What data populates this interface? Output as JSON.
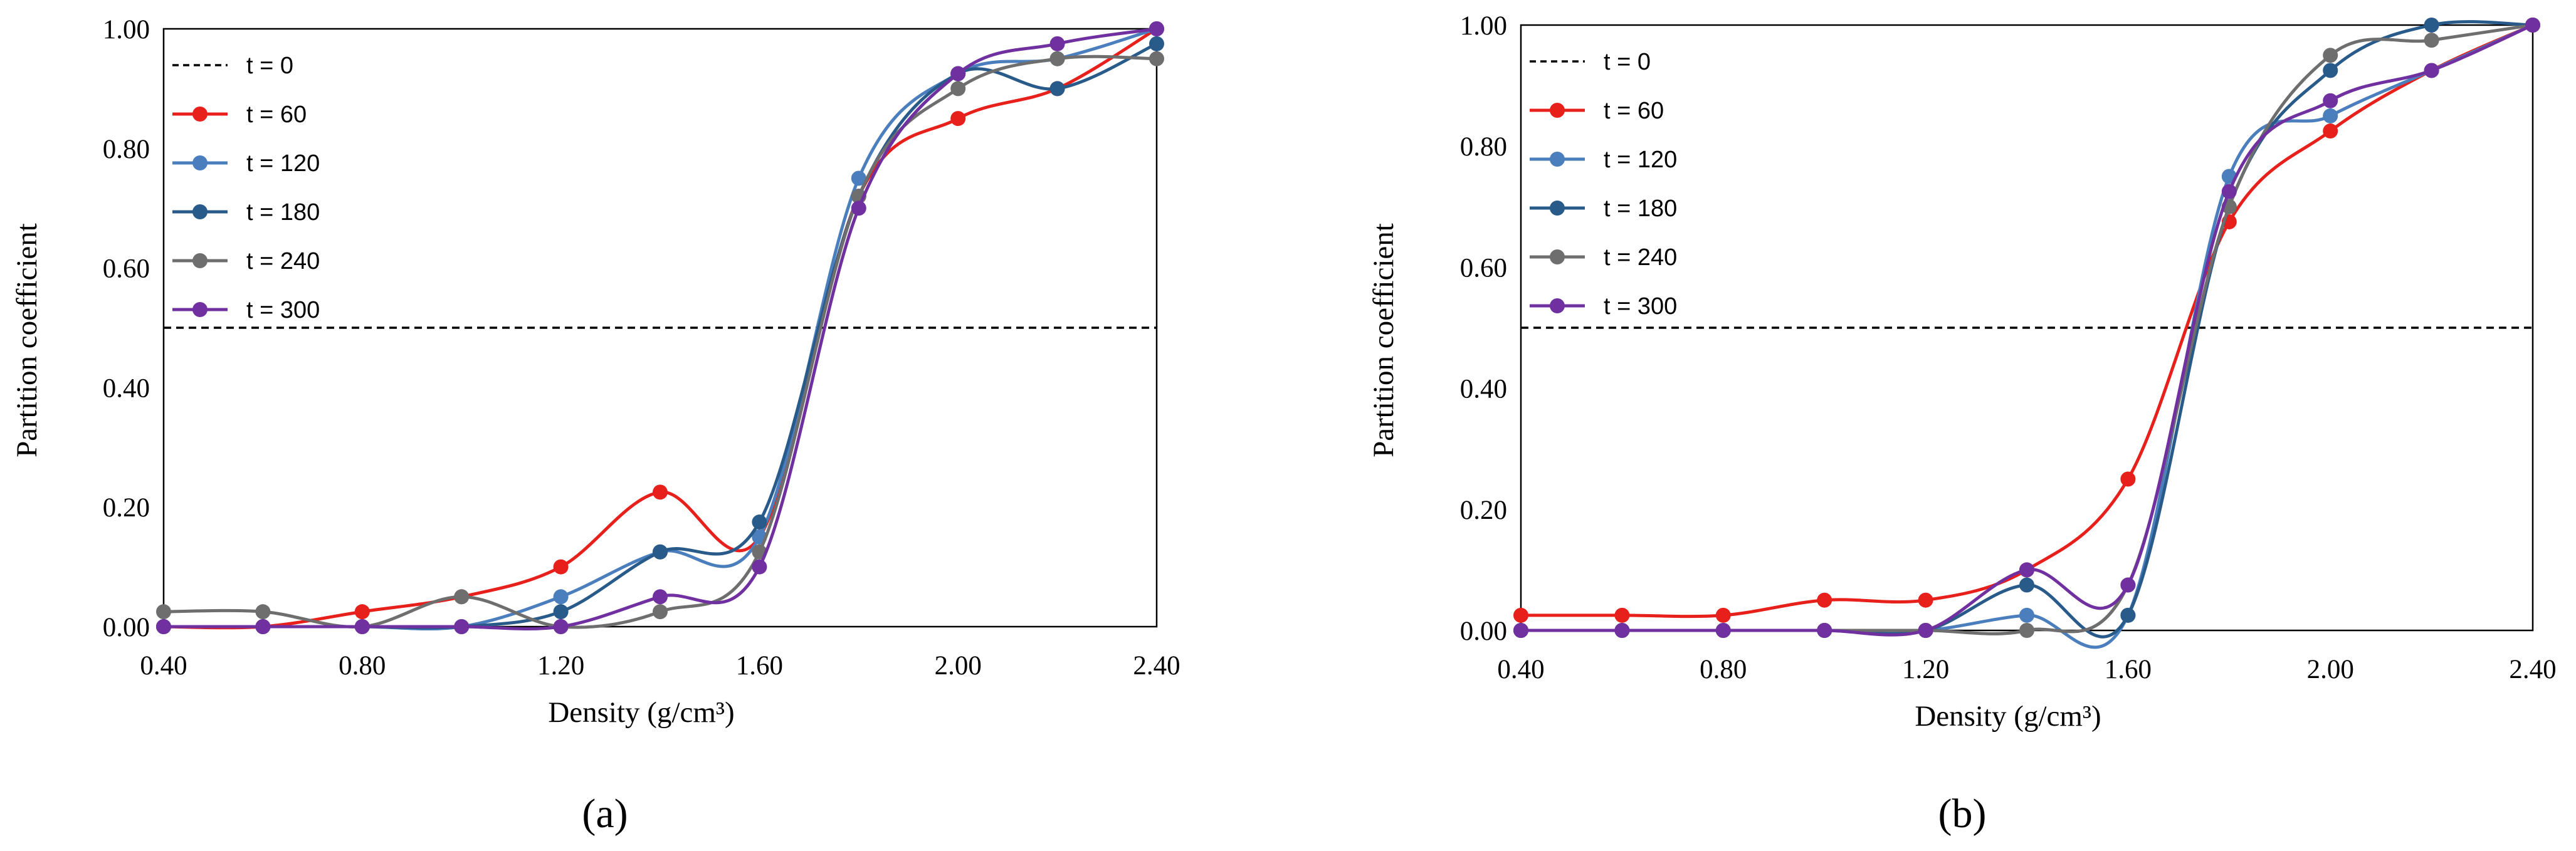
{
  "figure": {
    "panels": [
      "(a)",
      "(b)"
    ]
  },
  "chart_data": [
    {
      "type": "line",
      "panel_label": "(a)",
      "xlabel": "Density (g/cm³)",
      "ylabel": "Partition coefficient",
      "xlim": [
        0.4,
        2.4
      ],
      "ylim": [
        0,
        1.0
      ],
      "x_ticks": [
        "0.40",
        "0.80",
        "1.20",
        "1.60",
        "2.00",
        "2.40"
      ],
      "y_ticks": [
        "0.00",
        "0.20",
        "0.40",
        "0.60",
        "0.80",
        "1.00"
      ],
      "grid": false,
      "legend_position": "top-left",
      "x": [
        0.4,
        0.6,
        0.8,
        1.0,
        1.2,
        1.4,
        1.6,
        1.8,
        2.0,
        2.2,
        2.4
      ],
      "series": [
        {
          "name": "t = 0",
          "style": "dashed",
          "color": "#000000",
          "values": [
            0.5,
            0.5,
            0.5,
            0.5,
            0.5,
            0.5,
            0.5,
            0.5,
            0.5,
            0.5,
            0.5
          ]
        },
        {
          "name": "t = 60",
          "color": "#e8201c",
          "values": [
            0.0,
            0.0,
            0.025,
            0.05,
            0.1,
            0.225,
            0.15,
            0.72,
            0.85,
            0.9,
            1.0
          ]
        },
        {
          "name": "t = 120",
          "color": "#4a7ebd",
          "values": [
            0.0,
            0.0,
            0.0,
            0.0,
            0.05,
            0.125,
            0.15,
            0.75,
            0.925,
            0.95,
            1.0
          ]
        },
        {
          "name": "t = 180",
          "color": "#285a8a",
          "values": [
            0.0,
            0.0,
            0.0,
            0.0,
            0.025,
            0.125,
            0.175,
            0.72,
            0.925,
            0.9,
            0.975
          ]
        },
        {
          "name": "t = 240",
          "color": "#6e6e6e",
          "values": [
            0.025,
            0.025,
            0.0,
            0.05,
            0.0,
            0.025,
            0.125,
            0.72,
            0.9,
            0.95,
            0.95
          ]
        },
        {
          "name": "t = 300",
          "color": "#7030a0",
          "values": [
            0.0,
            0.0,
            0.0,
            0.0,
            0.0,
            0.05,
            0.1,
            0.7,
            0.925,
            0.975,
            1.0
          ]
        }
      ]
    },
    {
      "type": "line",
      "panel_label": "(b)",
      "xlabel": "Density (g/cm³)",
      "ylabel": "Partition coefficient",
      "xlim": [
        0.4,
        2.4
      ],
      "ylim": [
        0,
        1.0
      ],
      "x_ticks": [
        "0.40",
        "0.80",
        "1.20",
        "1.60",
        "2.00",
        "2.40"
      ],
      "y_ticks": [
        "0.00",
        "0.20",
        "0.40",
        "0.60",
        "0.80",
        "1.00"
      ],
      "grid": false,
      "legend_position": "top-left",
      "x": [
        0.4,
        0.6,
        0.8,
        1.0,
        1.2,
        1.4,
        1.6,
        1.8,
        2.0,
        2.2,
        2.4
      ],
      "series": [
        {
          "name": "t = 0",
          "style": "dashed",
          "color": "#000000",
          "values": [
            0.5,
            0.5,
            0.5,
            0.5,
            0.5,
            0.5,
            0.5,
            0.5,
            0.5,
            0.5,
            0.5
          ]
        },
        {
          "name": "t = 60",
          "color": "#e8201c",
          "values": [
            0.025,
            0.025,
            0.025,
            0.05,
            0.05,
            0.1,
            0.25,
            0.675,
            0.825,
            0.925,
            1.0
          ]
        },
        {
          "name": "t = 120",
          "color": "#4a7ebd",
          "values": [
            0.0,
            0.0,
            0.0,
            0.0,
            0.0,
            0.025,
            0.025,
            0.75,
            0.85,
            0.925,
            1.0
          ]
        },
        {
          "name": "t = 180",
          "color": "#285a8a",
          "values": [
            0.0,
            0.0,
            0.0,
            0.0,
            0.0,
            0.075,
            0.025,
            0.7,
            0.925,
            1.0,
            1.0
          ]
        },
        {
          "name": "t = 240",
          "color": "#6e6e6e",
          "values": [
            0.0,
            0.0,
            0.0,
            0.0,
            0.0,
            0.0,
            0.075,
            0.7,
            0.95,
            0.975,
            1.0
          ]
        },
        {
          "name": "t = 300",
          "color": "#7030a0",
          "values": [
            0.0,
            0.0,
            0.0,
            0.0,
            0.0,
            0.1,
            0.075,
            0.725,
            0.875,
            0.925,
            1.0
          ]
        }
      ]
    }
  ]
}
